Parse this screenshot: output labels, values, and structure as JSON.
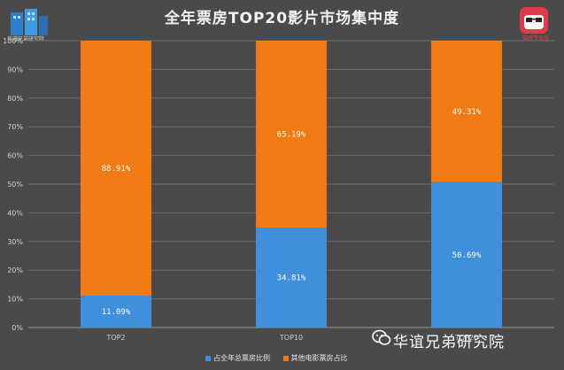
{
  "header": {
    "title": "全年票房TOP20影片市场集中度",
    "left_logo_text": "华谊兄弟研究院",
    "right_logo_text": "猫眼专业版"
  },
  "watermark": {
    "text": "华谊兄弟研究院",
    "icon": "wechat-icon"
  },
  "colors": {
    "background": "#4a4a4a",
    "blue": "#3f8fdc",
    "orange": "#f07a13",
    "grid": "#7a7a7a"
  },
  "chart_data": {
    "type": "bar",
    "stacked": true,
    "categories": [
      "TOP2",
      "TOP10",
      "TOP20"
    ],
    "series": [
      {
        "name": "占全年总票房比例",
        "color": "#3f8fdc",
        "values": [
          11.09,
          34.81,
          50.69
        ],
        "labels": [
          "11.09%",
          "34.81%",
          "50.69%"
        ]
      },
      {
        "name": "其他电影票房占比",
        "color": "#f07a13",
        "values": [
          88.91,
          65.19,
          49.31
        ],
        "labels": [
          "88.91%",
          "65.19%",
          "49.31%"
        ]
      }
    ],
    "ylim": [
      0,
      100
    ],
    "yticks": [
      "0%",
      "10%",
      "20%",
      "30%",
      "40%",
      "50%",
      "60%",
      "70%",
      "80%",
      "90%",
      "100%"
    ],
    "grid": true,
    "legend_position": "bottom"
  }
}
